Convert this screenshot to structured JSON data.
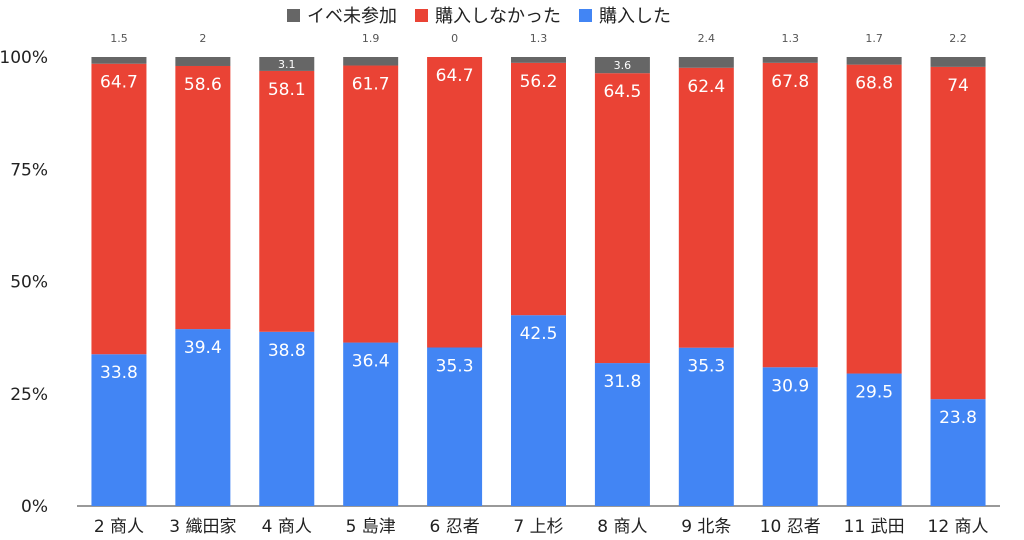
{
  "chart_data": {
    "type": "bar",
    "stacked": true,
    "percent_stacked": true,
    "categories": [
      "2 商人",
      "3 織田家",
      "4 商人",
      "5 島津",
      "6 忍者",
      "7 上杉",
      "8 商人",
      "9 北条",
      "10 忍者",
      "11 武田",
      "12 商人"
    ],
    "series": [
      {
        "name": "購入した",
        "color": "#4285f4",
        "values": [
          33.8,
          39.4,
          38.8,
          36.4,
          35.3,
          42.5,
          31.8,
          35.3,
          30.9,
          29.5,
          23.8
        ]
      },
      {
        "name": "購入しなかった",
        "color": "#ea4335",
        "values": [
          64.7,
          58.6,
          58.1,
          61.7,
          64.7,
          56.2,
          64.5,
          62.4,
          67.8,
          68.8,
          74
        ]
      },
      {
        "name": "イベ未参加",
        "color": "#666666",
        "values": [
          1.5,
          2,
          3.1,
          1.9,
          0,
          1.3,
          3.6,
          2.4,
          1.3,
          1.7,
          2.2
        ]
      }
    ],
    "legend_order": [
      "イベ未参加",
      "購入しなかった",
      "購入した"
    ],
    "y_ticks": [
      "0%",
      "25%",
      "50%",
      "75%",
      "100%"
    ],
    "ylim": [
      0,
      100
    ],
    "legend_position": "top",
    "grid": false
  }
}
